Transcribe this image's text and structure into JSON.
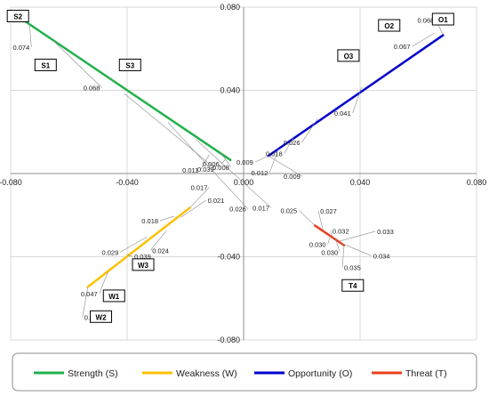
{
  "chart_data": {
    "type": "line",
    "xlim": [
      -0.08,
      0.08
    ],
    "ylim": [
      -0.08,
      0.08
    ],
    "x_ticks": [
      "-0.080",
      "-0.040",
      "0.000",
      "0.040",
      "0.080"
    ],
    "y_ticks": [
      "0.080",
      "0.040",
      "0.000",
      "-0.040",
      "-0.080"
    ],
    "grid": true,
    "legend_position": "bottom",
    "series": [
      {
        "name": "Strength (S)",
        "color": "#22b14c",
        "points": [
          [
            -0.0775,
            0.0755
          ],
          [
            -0.0045,
            0.0065
          ]
        ],
        "labels": [
          {
            "text": "0.074",
            "x": -0.0735,
            "y": 0.0715
          },
          {
            "text": "0.068",
            "x": -0.0655,
            "y": 0.064
          },
          {
            "text": "0.039",
            "x": -0.041,
            "y": 0.0385
          },
          {
            "text": "0.026",
            "x": -0.026,
            "y": 0.0245
          },
          {
            "text": "0.017",
            "x": -0.0165,
            "y": 0.0165
          },
          {
            "text": "0.008",
            "x": -0.008,
            "y": 0.0103
          },
          {
            "text": "0.011",
            "x": -0.0118,
            "y": 0.009
          },
          {
            "text": "0.006",
            "x": -0.0062,
            "y": 0.0068
          }
        ],
        "boxes": [
          {
            "text": "S2",
            "x": -0.0775,
            "y": 0.0755
          },
          {
            "text": "S1",
            "x": -0.068,
            "y": 0.052
          },
          {
            "text": "S3",
            "x": -0.039,
            "y": 0.052
          }
        ]
      },
      {
        "name": "Weakness (W)",
        "color": "#ffc000",
        "points": [
          [
            -0.0535,
            -0.0545
          ],
          [
            -0.0185,
            -0.0165
          ]
        ],
        "labels": [
          {
            "text": "0.017",
            "x": -0.0185,
            "y": -0.0165
          },
          {
            "text": "0.018",
            "x": -0.0238,
            "y": -0.0205
          },
          {
            "text": "0.021",
            "x": -0.0215,
            "y": -0.021
          },
          {
            "text": "0.029",
            "x": -0.0332,
            "y": -0.0305
          },
          {
            "text": "0.024",
            "x": -0.0265,
            "y": -0.0275
          },
          {
            "text": "0.039",
            "x": -0.04,
            "y": -0.039
          },
          {
            "text": "0.047",
            "x": -0.0465,
            "y": -0.047
          },
          {
            "text": "0.056",
            "x": -0.0535,
            "y": -0.0545
          }
        ],
        "boxes": [
          {
            "text": "W3",
            "x": -0.0345,
            "y": -0.044
          },
          {
            "text": "W1",
            "x": -0.0445,
            "y": -0.059
          },
          {
            "text": "W2",
            "x": -0.049,
            "y": -0.069
          }
        ]
      },
      {
        "name": "Opportunity (O)",
        "color": "#0000cc",
        "points": [
          [
            0.0085,
            0.0085
          ],
          [
            0.0685,
            0.0665
          ]
        ],
        "labels": [
          {
            "text": "0.068",
            "x": 0.0685,
            "y": 0.0665
          },
          {
            "text": "0.067",
            "x": 0.0655,
            "y": 0.0675
          },
          {
            "text": "0.041",
            "x": 0.0405,
            "y": 0.0415
          },
          {
            "text": "0.026",
            "x": 0.0255,
            "y": 0.0265
          },
          {
            "text": "0.018",
            "x": 0.017,
            "y": 0.017
          },
          {
            "text": "0.012",
            "x": 0.012,
            "y": 0.012
          },
          {
            "text": "0.009",
            "x": 0.0085,
            "y": 0.0085
          },
          {
            "text": "0.009",
            "x": 0.0085,
            "y": 0.0085
          }
        ],
        "boxes": [
          {
            "text": "O1",
            "x": 0.0685,
            "y": 0.074
          },
          {
            "text": "O2",
            "x": 0.05,
            "y": 0.071
          },
          {
            "text": "O3",
            "x": 0.036,
            "y": 0.0565
          }
        ]
      },
      {
        "name": "Threat (T)",
        "color": "#e8401c",
        "points": [
          [
            0.0245,
            -0.025
          ],
          [
            0.0345,
            -0.0345
          ]
        ],
        "labels": [
          {
            "text": "0.025",
            "x": 0.0245,
            "y": -0.025
          },
          {
            "text": "0.027",
            "x": 0.0272,
            "y": -0.027
          },
          {
            "text": "0.032",
            "x": 0.0305,
            "y": -0.0305
          },
          {
            "text": "0.033",
            "x": 0.033,
            "y": -0.0325
          },
          {
            "text": "0.030",
            "x": 0.0298,
            "y": -0.0298
          },
          {
            "text": "0.030",
            "x": 0.0315,
            "y": -0.031
          },
          {
            "text": "0.034",
            "x": 0.0335,
            "y": -0.0335
          },
          {
            "text": "0.035",
            "x": 0.0345,
            "y": -0.0345
          }
        ],
        "boxes": [
          {
            "text": "T4",
            "x": 0.0375,
            "y": -0.054
          }
        ]
      }
    ]
  }
}
